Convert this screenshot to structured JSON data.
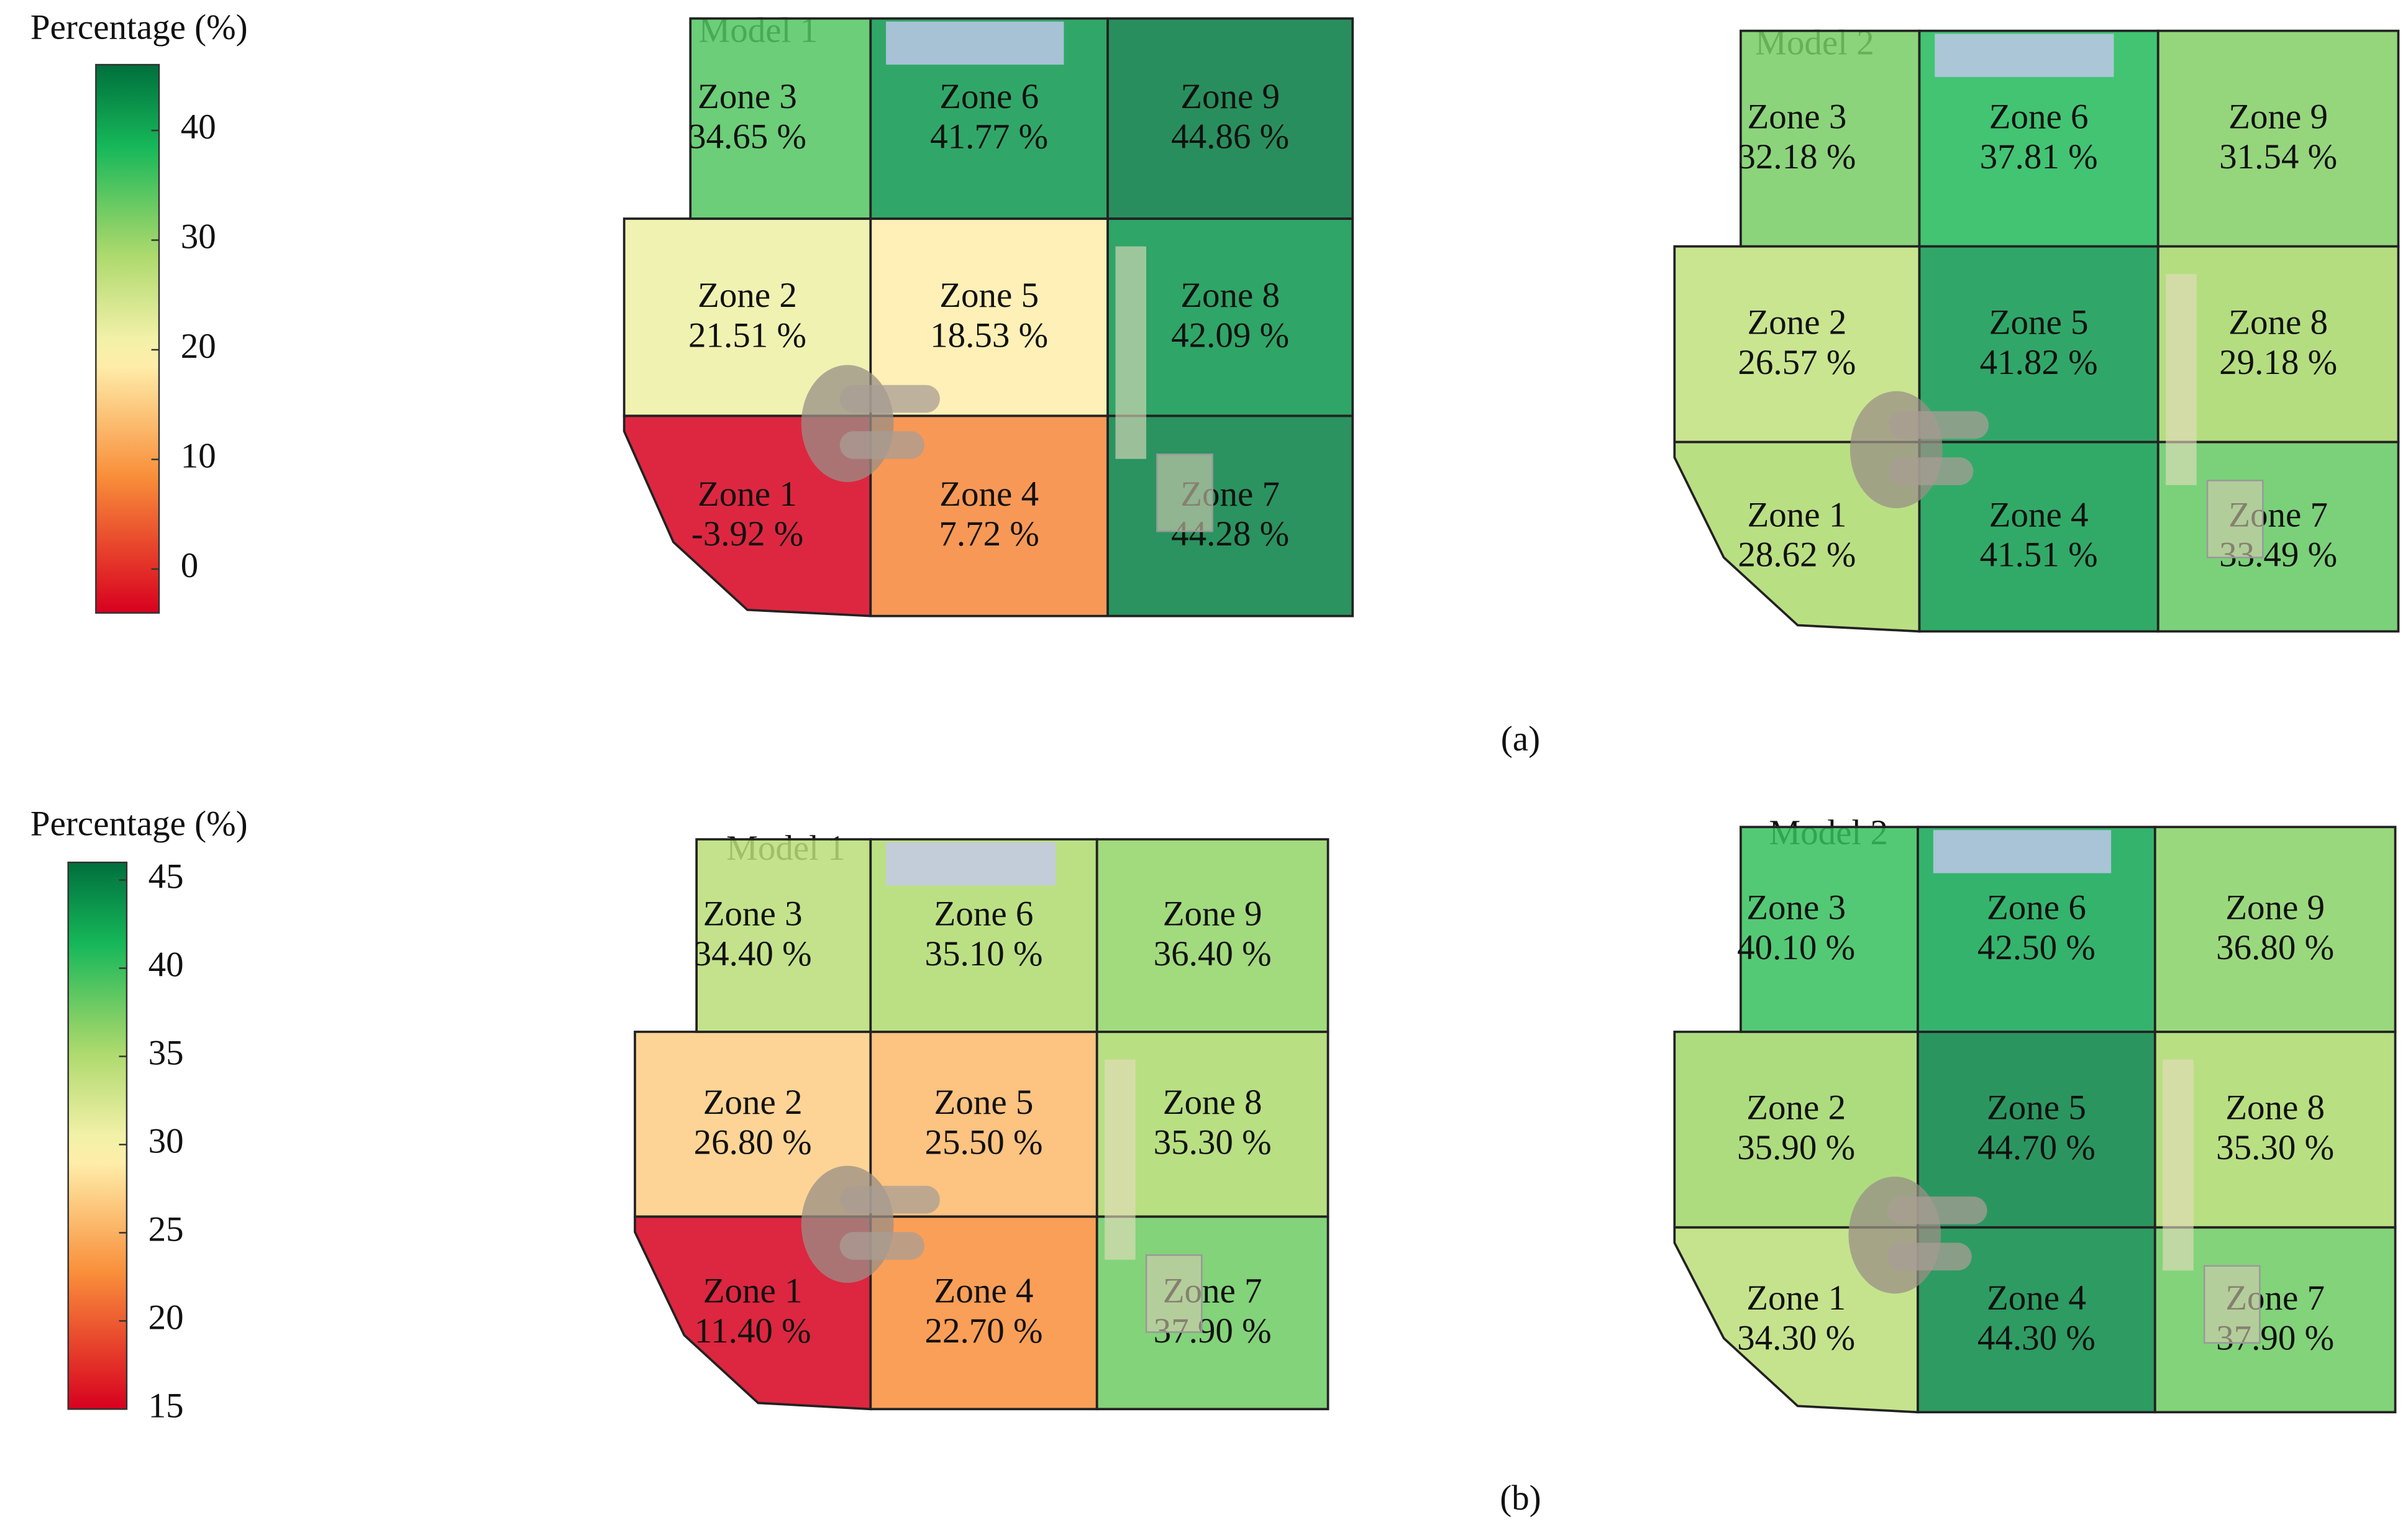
{
  "panels": [
    {
      "label": "(a)",
      "colorbar": {
        "title": "Percentage (%)",
        "lim": [
          -4,
          46
        ],
        "ticks": [
          0,
          10,
          20,
          30,
          40
        ]
      },
      "models": [
        {
          "title": "Model 1",
          "zones": [
            {
              "name": "Zone 1",
              "value": -3.92,
              "label": "-3.92 %"
            },
            {
              "name": "Zone 2",
              "value": 21.51,
              "label": "21.51 %"
            },
            {
              "name": "Zone 3",
              "value": 34.65,
              "label": "34.65 %"
            },
            {
              "name": "Zone 4",
              "value": 7.72,
              "label": "7.72 %"
            },
            {
              "name": "Zone 5",
              "value": 18.53,
              "label": "18.53 %"
            },
            {
              "name": "Zone 6",
              "value": 41.77,
              "label": "41.77 %"
            },
            {
              "name": "Zone 7",
              "value": 44.28,
              "label": "44.28 %"
            },
            {
              "name": "Zone 8",
              "value": 42.09,
              "label": "42.09 %"
            },
            {
              "name": "Zone 9",
              "value": 44.86,
              "label": "44.86 %"
            }
          ]
        },
        {
          "title": "Model 2",
          "zones": [
            {
              "name": "Zone 1",
              "value": 28.62,
              "label": "28.62 %"
            },
            {
              "name": "Zone 2",
              "value": 26.57,
              "label": "26.57 %"
            },
            {
              "name": "Zone 3",
              "value": 32.18,
              "label": "32.18 %"
            },
            {
              "name": "Zone 4",
              "value": 41.51,
              "label": "41.51 %"
            },
            {
              "name": "Zone 5",
              "value": 41.82,
              "label": "41.82 %"
            },
            {
              "name": "Zone 6",
              "value": 37.81,
              "label": "37.81 %"
            },
            {
              "name": "Zone 7",
              "value": 33.49,
              "label": "33.49 %"
            },
            {
              "name": "Zone 8",
              "value": 29.18,
              "label": "29.18 %"
            },
            {
              "name": "Zone 9",
              "value": 31.54,
              "label": "31.54 %"
            }
          ]
        }
      ]
    },
    {
      "label": "(b)",
      "colorbar": {
        "title": "Percentage (%)",
        "lim": [
          15,
          46
        ],
        "ticks": [
          15,
          20,
          25,
          30,
          35,
          40,
          45
        ]
      },
      "models": [
        {
          "title": "Model 1",
          "zones": [
            {
              "name": "Zone 1",
              "value": 11.4,
              "label": "11.40 %"
            },
            {
              "name": "Zone 2",
              "value": 26.8,
              "label": "26.80 %"
            },
            {
              "name": "Zone 3",
              "value": 34.4,
              "label": "34.40 %"
            },
            {
              "name": "Zone 4",
              "value": 22.7,
              "label": "22.70 %"
            },
            {
              "name": "Zone 5",
              "value": 25.5,
              "label": "25.50 %"
            },
            {
              "name": "Zone 6",
              "value": 35.1,
              "label": "35.10 %"
            },
            {
              "name": "Zone 7",
              "value": 37.9,
              "label": "37.90 %"
            },
            {
              "name": "Zone 8",
              "value": 35.3,
              "label": "35.30 %"
            },
            {
              "name": "Zone 9",
              "value": 36.4,
              "label": "36.40 %"
            }
          ]
        },
        {
          "title": "Model 2",
          "zones": [
            {
              "name": "Zone 1",
              "value": 34.3,
              "label": "34.30 %"
            },
            {
              "name": "Zone 2",
              "value": 35.9,
              "label": "35.90 %"
            },
            {
              "name": "Zone 3",
              "value": 40.1,
              "label": "40.10 %"
            },
            {
              "name": "Zone 4",
              "value": 44.3,
              "label": "44.30 %"
            },
            {
              "name": "Zone 5",
              "value": 44.7,
              "label": "44.70 %"
            },
            {
              "name": "Zone 6",
              "value": 42.5,
              "label": "42.50 %"
            },
            {
              "name": "Zone 7",
              "value": 37.9,
              "label": "37.90 %"
            },
            {
              "name": "Zone 8",
              "value": 35.3,
              "label": "35.30 %"
            },
            {
              "name": "Zone 9",
              "value": 36.8,
              "label": "36.80 %"
            }
          ]
        }
      ]
    }
  ]
}
